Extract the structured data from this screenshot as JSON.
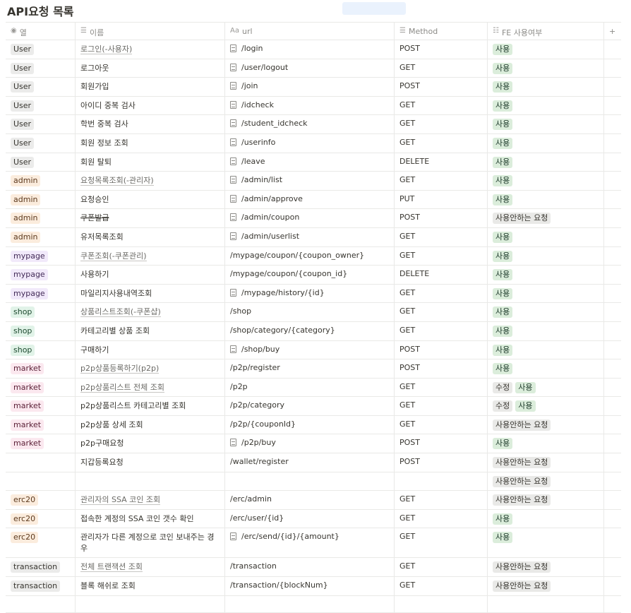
{
  "page": {
    "title": "API요청 목록"
  },
  "columns": {
    "col1": "열",
    "col2": "이름",
    "col3": "url",
    "col4": "Method",
    "col5": "FE 사용여부",
    "add": "+"
  },
  "rows": [
    {
      "cat": "User",
      "cls": "user",
      "name": "로그인(-사용자)",
      "link": true,
      "doc": true,
      "url": "/login",
      "method": "POST",
      "fe": [
        {
          "label": "사용",
          "cls": "use"
        }
      ]
    },
    {
      "cat": "User",
      "cls": "user",
      "name": "로그아웃",
      "doc": true,
      "url": "/user/logout",
      "method": "GET",
      "fe": [
        {
          "label": "사용",
          "cls": "use"
        }
      ]
    },
    {
      "cat": "User",
      "cls": "user",
      "name": "회원가입",
      "doc": true,
      "url": "/join",
      "method": "POST",
      "fe": [
        {
          "label": "사용",
          "cls": "use"
        }
      ]
    },
    {
      "cat": "User",
      "cls": "user",
      "name": "아이디 중복 검사",
      "doc": true,
      "url": "/idcheck",
      "method": "GET",
      "fe": [
        {
          "label": "사용",
          "cls": "use"
        }
      ]
    },
    {
      "cat": "User",
      "cls": "user",
      "name": "학번 중복 검사",
      "doc": true,
      "url": "/student_idcheck",
      "method": "GET",
      "fe": [
        {
          "label": "사용",
          "cls": "use"
        }
      ]
    },
    {
      "cat": "User",
      "cls": "user",
      "name": "회원 정보 조회",
      "doc": true,
      "url": "/userinfo",
      "method": "GET",
      "fe": [
        {
          "label": "사용",
          "cls": "use"
        }
      ]
    },
    {
      "cat": "User",
      "cls": "user",
      "name": "회원 탈퇴",
      "doc": true,
      "url": "/leave",
      "method": "DELETE",
      "fe": [
        {
          "label": "사용",
          "cls": "use"
        }
      ]
    },
    {
      "cat": "admin",
      "cls": "admin",
      "name": "요청목록조회(-관리자)",
      "link": true,
      "doc": true,
      "url": "/admin/list",
      "method": "GET",
      "fe": [
        {
          "label": "사용",
          "cls": "use"
        }
      ]
    },
    {
      "cat": "admin",
      "cls": "admin",
      "name": "요청승인",
      "doc": true,
      "url": "/admin/approve",
      "method": "PUT",
      "fe": [
        {
          "label": "사용",
          "cls": "use"
        }
      ]
    },
    {
      "cat": "admin",
      "cls": "admin",
      "name": "쿠폰발급",
      "strike": true,
      "doc": true,
      "url": "/admin/coupon",
      "method": "POST",
      "fe": [
        {
          "label": "사용안하는 요청",
          "cls": "nouse"
        }
      ]
    },
    {
      "cat": "admin",
      "cls": "admin",
      "name": "유저목록조회",
      "doc": true,
      "url": "/admin/userlist",
      "method": "GET",
      "fe": [
        {
          "label": "사용",
          "cls": "use"
        }
      ]
    },
    {
      "cat": "mypage",
      "cls": "mypage",
      "name": "쿠폰조회(-쿠폰관리)",
      "link": true,
      "url": "/mypage/coupon/{coupon_owner}",
      "method": "GET",
      "fe": [
        {
          "label": "사용",
          "cls": "use"
        }
      ]
    },
    {
      "cat": "mypage",
      "cls": "mypage",
      "name": "사용하기",
      "url": "/mypage/coupon/{coupon_id}",
      "method": "DELETE",
      "fe": [
        {
          "label": "사용",
          "cls": "use"
        }
      ]
    },
    {
      "cat": "mypage",
      "cls": "mypage",
      "name": "마일리지사용내역조회",
      "doc": true,
      "url": "/mypage/history/{id}",
      "method": "GET",
      "fe": [
        {
          "label": "사용",
          "cls": "use"
        }
      ]
    },
    {
      "cat": "shop",
      "cls": "shop",
      "name": "상품리스트조회(-쿠폰샵)",
      "link": true,
      "url": "/shop",
      "method": "GET",
      "fe": [
        {
          "label": "사용",
          "cls": "use"
        }
      ]
    },
    {
      "cat": "shop",
      "cls": "shop",
      "name": "카테고리별 상품 조회",
      "url": "/shop/category/{category}",
      "method": "GET",
      "fe": [
        {
          "label": "사용",
          "cls": "use"
        }
      ]
    },
    {
      "cat": "shop",
      "cls": "shop",
      "name": "구매하기",
      "doc": true,
      "url": "/shop/buy",
      "method": "POST",
      "fe": [
        {
          "label": "사용",
          "cls": "use"
        }
      ]
    },
    {
      "cat": "market",
      "cls": "market",
      "name": "p2p상품등록하기(p2p)",
      "link": true,
      "url": "/p2p/register",
      "method": "POST",
      "fe": [
        {
          "label": "사용",
          "cls": "use"
        }
      ]
    },
    {
      "cat": "market",
      "cls": "market",
      "name": "p2p상품리스트 전체 조회",
      "link": true,
      "url": "/p2p",
      "method": "GET",
      "fe": [
        {
          "label": "수정",
          "cls": "edit"
        },
        {
          "label": "사용",
          "cls": "use"
        }
      ]
    },
    {
      "cat": "market",
      "cls": "market",
      "name": "p2p상품리스트 카테고리별 조회",
      "url": "/p2p/category",
      "method": "GET",
      "fe": [
        {
          "label": "수정",
          "cls": "edit"
        },
        {
          "label": "사용",
          "cls": "use"
        }
      ]
    },
    {
      "cat": "market",
      "cls": "market",
      "name": "p2p상품 상세 조회",
      "url": "/p2p/{couponId}",
      "method": "GET",
      "fe": [
        {
          "label": "사용안하는 요청",
          "cls": "nouse"
        }
      ]
    },
    {
      "cat": "market",
      "cls": "market",
      "name": "p2p구매요청",
      "doc": true,
      "url": "/p2p/buy",
      "method": "POST",
      "fe": [
        {
          "label": "사용",
          "cls": "use"
        }
      ]
    },
    {
      "cat": "",
      "cls": "",
      "name": "지갑등록요청",
      "url": "/wallet/register",
      "method": "POST",
      "fe": [
        {
          "label": "사용안하는 요청",
          "cls": "nouse"
        }
      ]
    },
    {
      "cat": "",
      "cls": "",
      "name": "",
      "url": "",
      "method": "",
      "fe": [
        {
          "label": "사용안하는 요청",
          "cls": "nouse"
        }
      ]
    },
    {
      "cat": "erc20",
      "cls": "erc20",
      "name": "관리자의 SSA 코인 조회",
      "link": true,
      "url": "/erc/admin",
      "method": "GET",
      "fe": [
        {
          "label": "사용안하는 요청",
          "cls": "nouse"
        }
      ]
    },
    {
      "cat": "erc20",
      "cls": "erc20",
      "name": "접속한 계정의 SSA 코인 갯수 확인",
      "url": "/erc/user/{id}",
      "method": "GET",
      "fe": [
        {
          "label": "사용",
          "cls": "use"
        }
      ]
    },
    {
      "cat": "erc20",
      "cls": "erc20",
      "name": "관리자가 다른 계정으로 코인 보내주는 경우",
      "tall": true,
      "doc": true,
      "url": "/erc/send/{id}/{amount}",
      "method": "GET",
      "fe": [
        {
          "label": "사용",
          "cls": "use"
        }
      ]
    },
    {
      "cat": "transaction",
      "cls": "transaction",
      "name": "전체 트랜잭션 조회",
      "link": true,
      "url": "/transaction",
      "method": "GET",
      "fe": [
        {
          "label": "사용안하는 요청",
          "cls": "nouse"
        }
      ]
    },
    {
      "cat": "transaction",
      "cls": "transaction",
      "name": "블록 해쉬로 조회",
      "url": "/transaction/{blockNum}",
      "method": "GET",
      "fe": [
        {
          "label": "사용안하는 요청",
          "cls": "nouse"
        }
      ]
    }
  ]
}
